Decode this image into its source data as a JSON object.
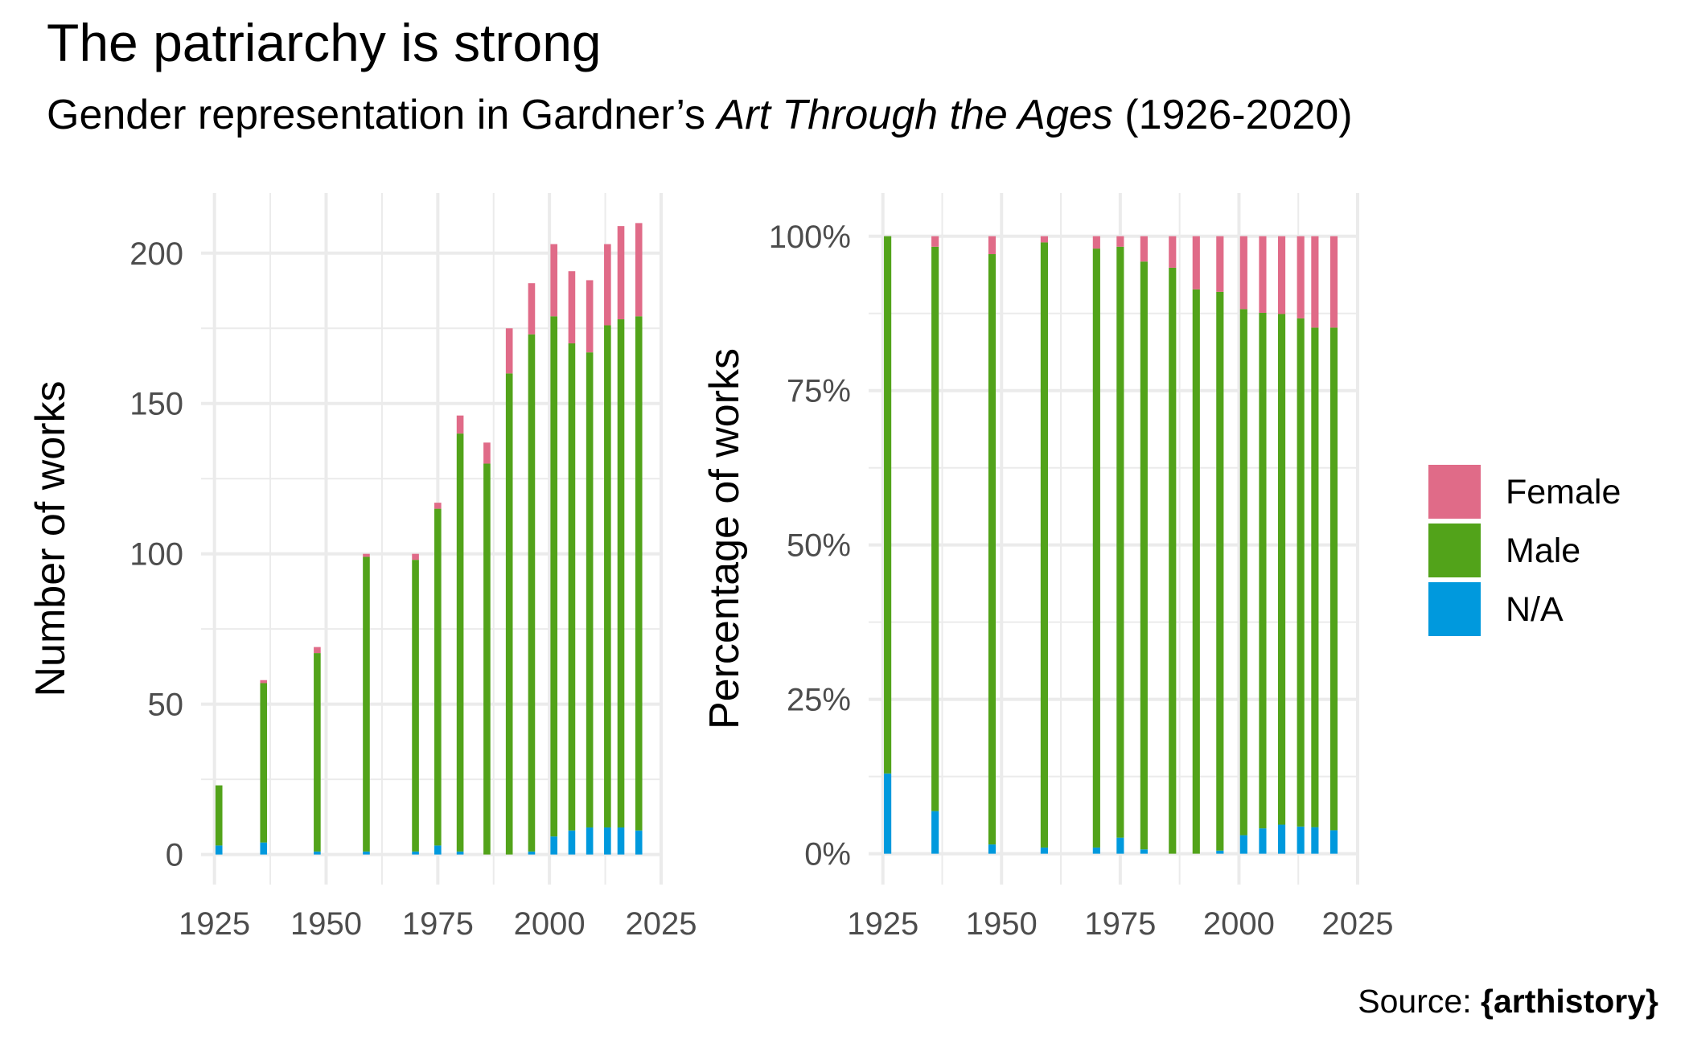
{
  "title": "The patriarchy is strong",
  "subtitle": {
    "before": "Gender representation in Gardner’s ",
    "italic": "Art Through the Ages",
    "after": " (1926-2020)"
  },
  "caption": {
    "prefix": "Source: ",
    "bold": "{arthistory}"
  },
  "colors": {
    "Female": "#E06B88",
    "Male": "#52A31A",
    "N/A": "#0099DD",
    "grid": "#EBEBEB"
  },
  "legend": {
    "position": "right",
    "entries": [
      "Female",
      "Male",
      "N/A"
    ]
  },
  "chart_data": [
    {
      "type": "bar",
      "stacked": true,
      "ylabel": "Number of works",
      "xlim": [
        1922,
        2025
      ],
      "ylim": [
        -10,
        220
      ],
      "x_ticks": [
        1925,
        1950,
        1975,
        2000,
        2025
      ],
      "y_ticks": [
        0,
        50,
        100,
        150,
        200
      ],
      "y_tick_labels": [
        "0",
        "50",
        "100",
        "150",
        "200"
      ],
      "grid": true,
      "x": [
        1926,
        1936,
        1948,
        1959,
        1970,
        1975,
        1980,
        1986,
        1991,
        1996,
        2001,
        2005,
        2009,
        2013,
        2016,
        2020
      ],
      "series": [
        {
          "name": "N/A",
          "values": [
            3,
            4,
            1,
            1,
            1,
            3,
            1,
            0,
            0,
            1,
            6,
            8,
            9,
            9,
            9,
            8
          ]
        },
        {
          "name": "Male",
          "values": [
            20,
            53,
            66,
            98,
            97,
            112,
            139,
            130,
            160,
            172,
            173,
            162,
            158,
            167,
            169,
            171
          ]
        },
        {
          "name": "Female",
          "values": [
            0,
            1,
            2,
            1,
            2,
            2,
            6,
            7,
            15,
            17,
            24,
            24,
            24,
            27,
            31,
            31
          ]
        }
      ]
    },
    {
      "type": "bar",
      "stacked": true,
      "normalized": true,
      "ylabel": "Percentage of works",
      "xlim": [
        1922,
        2025
      ],
      "ylim": [
        -0.05,
        1.07
      ],
      "x_ticks": [
        1925,
        1950,
        1975,
        2000,
        2025
      ],
      "y_ticks": [
        0,
        0.25,
        0.5,
        0.75,
        1.0
      ],
      "y_tick_labels": [
        "0%",
        "25%",
        "50%",
        "75%",
        "100%"
      ],
      "grid": true,
      "x": [
        1926,
        1936,
        1948,
        1959,
        1970,
        1975,
        1980,
        1986,
        1991,
        1996,
        2001,
        2005,
        2009,
        2013,
        2016,
        2020
      ],
      "series": [
        {
          "name": "N/A",
          "values": [
            0.13,
            0.069,
            0.015,
            0.01,
            0.01,
            0.026,
            0.007,
            0,
            0,
            0.005,
            0.03,
            0.041,
            0.047,
            0.044,
            0.043,
            0.038
          ]
        },
        {
          "name": "Male",
          "values": [
            0.87,
            0.914,
            0.956,
            0.98,
            0.97,
            0.957,
            0.952,
            0.949,
            0.914,
            0.905,
            0.852,
            0.835,
            0.827,
            0.823,
            0.809,
            0.814
          ]
        },
        {
          "name": "Female",
          "values": [
            0,
            0.017,
            0.029,
            0.01,
            0.02,
            0.017,
            0.041,
            0.051,
            0.086,
            0.09,
            0.118,
            0.124,
            0.126,
            0.133,
            0.148,
            0.148
          ]
        }
      ]
    }
  ]
}
